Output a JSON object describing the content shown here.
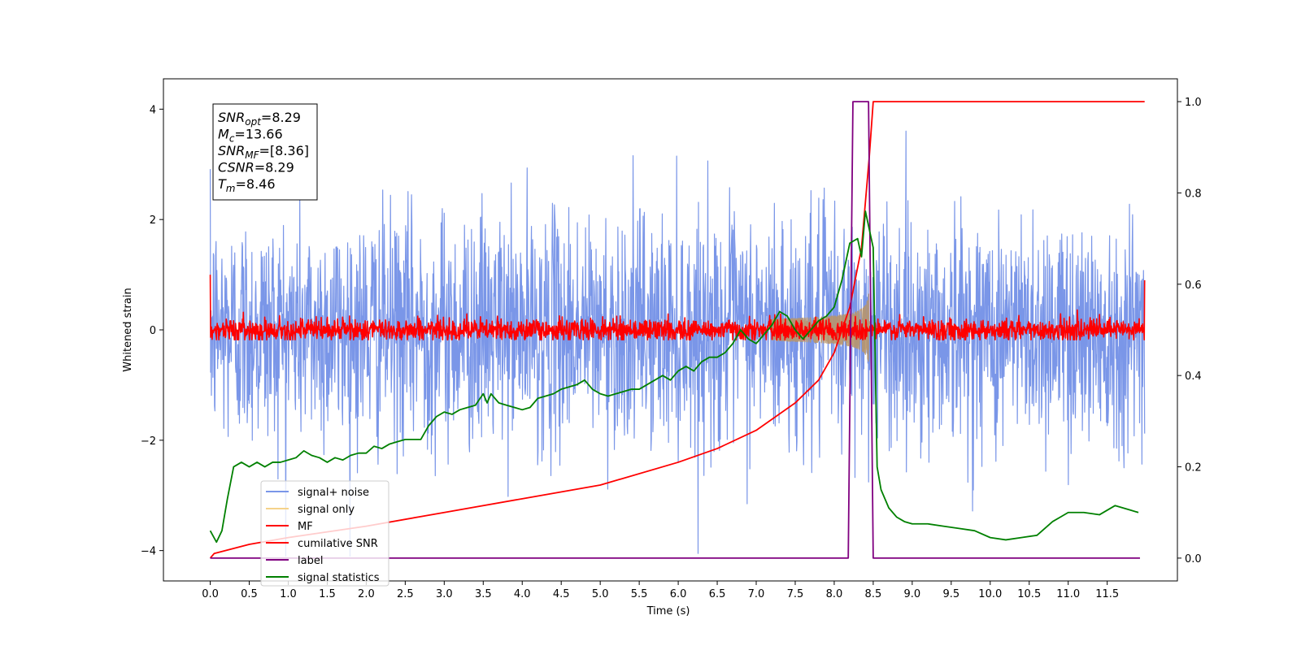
{
  "chart_data": {
    "type": "line",
    "xlabel": "Time (s)",
    "ylabel_left": "Whitened strain",
    "ylabel_right": "",
    "xlim": [
      -0.6,
      12.4
    ],
    "ylim_left": [
      -4.55,
      4.55
    ],
    "ylim_right": [
      -0.05,
      1.05
    ],
    "x_ticks": [
      0.0,
      0.5,
      1.0,
      1.5,
      2.0,
      2.5,
      3.0,
      3.5,
      4.0,
      4.5,
      5.0,
      5.5,
      6.0,
      6.5,
      7.0,
      7.5,
      8.0,
      8.5,
      9.0,
      9.5,
      10.0,
      10.5,
      11.0,
      11.5
    ],
    "x_tick_labels": [
      "0.0",
      "0.5",
      "1.0",
      "1.5",
      "2.0",
      "2.5",
      "3.0",
      "3.5",
      "4.0",
      "4.5",
      "5.0",
      "5.5",
      "6.0",
      "6.5",
      "7.0",
      "7.5",
      "8.0",
      "8.5",
      "9.0",
      "9.5",
      "10.0",
      "10.5",
      "11.0",
      "11.5"
    ],
    "y_left_ticks": [
      -4,
      -2,
      0,
      2,
      4
    ],
    "y_left_tick_labels": [
      "−4",
      "−2",
      "0",
      "2",
      "4"
    ],
    "y_right_ticks": [
      0.0,
      0.2,
      0.4,
      0.6,
      0.8,
      1.0
    ],
    "y_right_tick_labels": [
      "0.0",
      "0.2",
      "0.4",
      "0.6",
      "0.8",
      "1.0"
    ],
    "grid": false,
    "legend_position": "lower-left",
    "annotation": {
      "lines": [
        {
          "main": "SNR",
          "sub": "opt",
          "value": "=8.29"
        },
        {
          "main": "M",
          "sub": "c",
          "value": "=13.66"
        },
        {
          "main": "SNR",
          "sub": "MF",
          "value": "=[8.36]"
        },
        {
          "main": "CSNR",
          "sub": "",
          "value": "=8.29"
        },
        {
          "main": "T",
          "sub": "m",
          "value": "=8.46"
        }
      ]
    },
    "series": [
      {
        "name": "signal+ noise",
        "axis": "left",
        "color": "#7a96e8",
        "kind": "noise",
        "x_range": [
          0.0,
          11.98
        ],
        "std": 1.05,
        "clip": [
          -4.1,
          4.1
        ]
      },
      {
        "name": "signal only",
        "axis": "left",
        "color": "#f5d28a",
        "kind": "chirp",
        "x_range": [
          7.2,
          8.5
        ],
        "peak_time": 8.45,
        "peak_amplitude": 0.9
      },
      {
        "name": "MF",
        "axis": "left",
        "color": "#ff0000",
        "kind": "noise",
        "x_range": [
          0.0,
          11.98
        ],
        "std": 0.1,
        "clip": [
          -0.18,
          0.38
        ],
        "start_value": 1.0,
        "end_value": 0.9
      },
      {
        "name": "cumilative SNR",
        "axis": "right",
        "color": "#ff0000",
        "x": [
          0.0,
          0.05,
          0.5,
          1.0,
          2.0,
          3.0,
          4.0,
          5.0,
          6.0,
          6.5,
          7.0,
          7.5,
          7.8,
          8.0,
          8.2,
          8.35,
          8.45,
          8.5,
          9.0,
          10.0,
          11.0,
          11.98
        ],
        "y": [
          0.0,
          0.01,
          0.03,
          0.045,
          0.07,
          0.1,
          0.13,
          0.16,
          0.21,
          0.24,
          0.28,
          0.34,
          0.39,
          0.45,
          0.55,
          0.68,
          0.88,
          1.0,
          1.0,
          1.0,
          1.0,
          1.0
        ]
      },
      {
        "name": "label",
        "axis": "right",
        "color": "#800080",
        "x": [
          0.0,
          8.18,
          8.24,
          8.44,
          8.5,
          11.92
        ],
        "y": [
          0.0,
          0.0,
          1.0,
          1.0,
          0.0,
          0.0
        ]
      },
      {
        "name": "signal statistics",
        "axis": "right",
        "color": "#008000",
        "x": [
          0.0,
          0.08,
          0.15,
          0.22,
          0.3,
          0.4,
          0.5,
          0.6,
          0.7,
          0.8,
          0.9,
          1.0,
          1.1,
          1.2,
          1.3,
          1.4,
          1.5,
          1.6,
          1.7,
          1.8,
          1.9,
          2.0,
          2.1,
          2.2,
          2.3,
          2.4,
          2.5,
          2.6,
          2.7,
          2.8,
          2.9,
          3.0,
          3.1,
          3.2,
          3.3,
          3.4,
          3.5,
          3.55,
          3.6,
          3.7,
          3.8,
          3.9,
          4.0,
          4.1,
          4.2,
          4.3,
          4.4,
          4.5,
          4.6,
          4.7,
          4.8,
          4.9,
          5.0,
          5.1,
          5.2,
          5.3,
          5.4,
          5.5,
          5.6,
          5.7,
          5.8,
          5.9,
          6.0,
          6.1,
          6.2,
          6.3,
          6.4,
          6.5,
          6.6,
          6.7,
          6.8,
          6.9,
          7.0,
          7.1,
          7.2,
          7.3,
          7.4,
          7.5,
          7.6,
          7.7,
          7.8,
          7.9,
          8.0,
          8.1,
          8.2,
          8.3,
          8.35,
          8.4,
          8.45,
          8.5,
          8.55,
          8.6,
          8.7,
          8.8,
          8.9,
          9.0,
          9.2,
          9.4,
          9.6,
          9.8,
          10.0,
          10.2,
          10.4,
          10.6,
          10.8,
          10.9,
          11.0,
          11.2,
          11.4,
          11.6,
          11.8,
          11.9
        ],
        "y": [
          0.06,
          0.035,
          0.06,
          0.13,
          0.2,
          0.21,
          0.2,
          0.21,
          0.2,
          0.21,
          0.21,
          0.215,
          0.22,
          0.235,
          0.225,
          0.22,
          0.21,
          0.22,
          0.215,
          0.225,
          0.23,
          0.23,
          0.245,
          0.24,
          0.25,
          0.255,
          0.26,
          0.26,
          0.26,
          0.29,
          0.31,
          0.32,
          0.315,
          0.325,
          0.33,
          0.335,
          0.36,
          0.34,
          0.36,
          0.34,
          0.335,
          0.33,
          0.325,
          0.33,
          0.35,
          0.355,
          0.36,
          0.37,
          0.375,
          0.38,
          0.39,
          0.37,
          0.36,
          0.355,
          0.36,
          0.365,
          0.37,
          0.37,
          0.38,
          0.39,
          0.4,
          0.39,
          0.41,
          0.42,
          0.41,
          0.43,
          0.44,
          0.44,
          0.45,
          0.47,
          0.5,
          0.48,
          0.47,
          0.49,
          0.51,
          0.54,
          0.53,
          0.5,
          0.48,
          0.5,
          0.52,
          0.53,
          0.55,
          0.61,
          0.69,
          0.7,
          0.66,
          0.76,
          0.72,
          0.68,
          0.2,
          0.15,
          0.11,
          0.09,
          0.08,
          0.075,
          0.075,
          0.07,
          0.065,
          0.06,
          0.045,
          0.04,
          0.045,
          0.05,
          0.08,
          0.09,
          0.1,
          0.1,
          0.095,
          0.115,
          0.105,
          0.1
        ]
      }
    ]
  }
}
